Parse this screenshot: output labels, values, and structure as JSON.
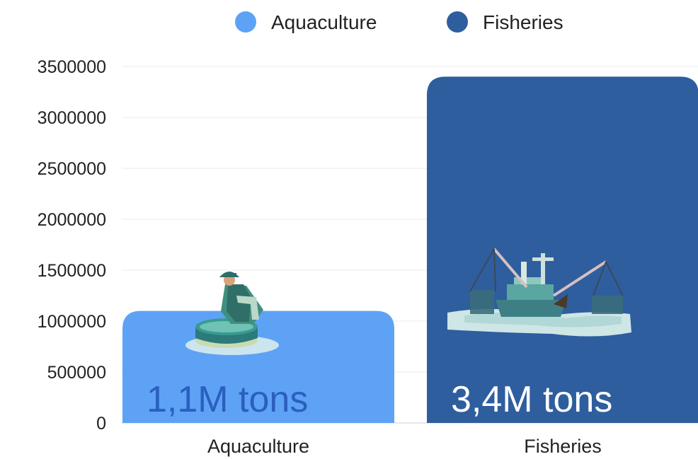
{
  "chart_data": {
    "type": "bar",
    "title": "",
    "xlabel": "",
    "ylabel": "",
    "categories": [
      "Aquaculture",
      "Fisheries"
    ],
    "values": [
      1100000,
      3400000
    ],
    "data_labels": [
      "1,1M tons",
      "3,4M tons"
    ],
    "yticks": [
      "0",
      "500000",
      "1000000",
      "1500000",
      "2000000",
      "2500000",
      "3000000",
      "3500000"
    ],
    "ylim": [
      0,
      3500000
    ],
    "grid": true,
    "legend": {
      "placement": "top-center",
      "entries": [
        "Aquaculture",
        "Fisheries"
      ]
    },
    "colors": [
      "#5ea2f5",
      "#2e5e9e"
    ],
    "label_colors": [
      "#2a5fbf",
      "#ffffff"
    ],
    "illustrations": [
      "fish-farmer-illustration",
      "fishing-boat-illustration"
    ]
  }
}
